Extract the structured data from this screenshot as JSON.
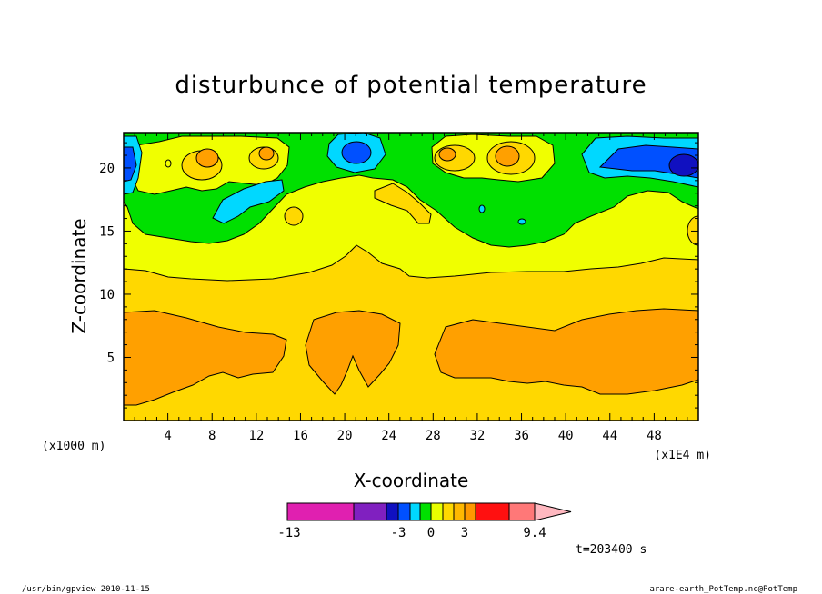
{
  "chart_data": {
    "type": "heatmap",
    "title": "disturbunce of potential temperature",
    "xlabel": "X-coordinate",
    "ylabel": "Z-coordinate",
    "x_unit_left": "(x1000 m)",
    "x_unit_right": "(x1E4 m)",
    "xlim": [
      0,
      52
    ],
    "ylim": [
      0,
      22.8
    ],
    "x_ticks": [
      "4",
      "8",
      "12",
      "16",
      "20",
      "24",
      "28",
      "32",
      "36",
      "40",
      "44",
      "48"
    ],
    "y_ticks": [
      "5",
      "10",
      "15",
      "20"
    ],
    "time_label": "t=203400 s",
    "footer_left": "/usr/bin/gpview   2010-11-15",
    "footer_right": "arare-earth_PotTemp.nc@PotTemp",
    "colorbar": {
      "tick_labels": [
        "-13",
        "-3",
        "0",
        "3",
        "9.4"
      ],
      "colors": [
        "#e020b0",
        "#8020c0",
        "#1010c0",
        "#0050ff",
        "#00d8ff",
        "#00e000",
        "#e8ff00",
        "#ffd800",
        "#ffb800",
        "#ff9800",
        "#ff6000",
        "#ff1010",
        "#ff7878",
        "#ffb8c0"
      ]
    },
    "levels": [
      {
        "name": "band-low",
        "z_range": [
          0,
          8.6
        ],
        "value": "3 to 4",
        "color": "#ffa000"
      },
      {
        "name": "band-mid",
        "z_range": [
          8.6,
          12.3
        ],
        "value": "2 to 3",
        "color": "#ffd800"
      },
      {
        "name": "band-upper",
        "z_range": [
          12.3,
          17
        ],
        "value": "1 to 2",
        "color": "#f0ff00"
      },
      {
        "name": "band-top",
        "z_range": [
          17,
          22.8
        ],
        "value": "-3 to 1",
        "color": "#00e000"
      }
    ]
  }
}
